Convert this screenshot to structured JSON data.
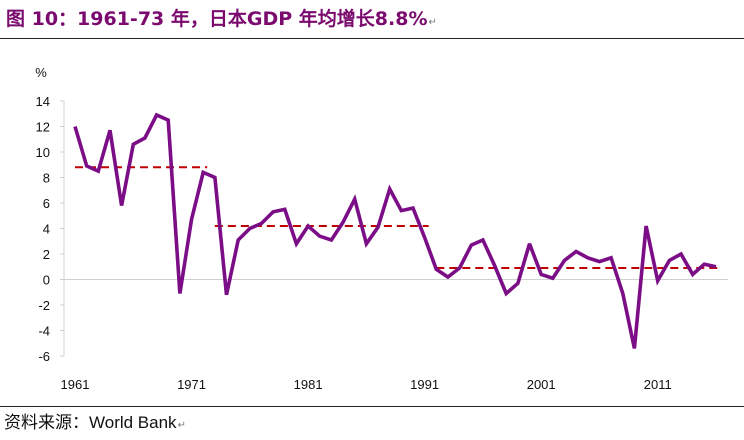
{
  "title": "图 10：1961-73 年，日本GDP 年均增长8.8%",
  "title_mark": "↵",
  "source": {
    "label": "资料来源：",
    "name": "World Bank",
    "mark": "↵"
  },
  "colors": {
    "title": "#7a0a6e",
    "series": "#7b0d86",
    "average": "#c00000",
    "axis": "#d0d0d0"
  },
  "chart_data": {
    "type": "line",
    "ylabel": "%",
    "ylim": [
      -6,
      14
    ],
    "yticks": [
      14,
      12,
      10,
      8,
      6,
      4,
      2,
      0,
      -2,
      -4,
      -6
    ],
    "ytick_labels": [
      "14",
      "12",
      "10",
      "8",
      "6",
      "4",
      "2",
      "0",
      "-2",
      "-4",
      "-6"
    ],
    "xlim": [
      1961,
      2016
    ],
    "xticks": [
      1961,
      1971,
      1981,
      1991,
      2001,
      2011
    ],
    "xtick_labels": [
      "1961",
      "1971",
      "1981",
      "1991",
      "2001",
      "2011"
    ],
    "grid": false,
    "series": [
      {
        "x": [
          1961,
          1962,
          1963,
          1964,
          1965,
          1966,
          1967,
          1968,
          1969,
          1970,
          1971,
          1972,
          1973,
          1974,
          1975,
          1976,
          1977,
          1978,
          1979,
          1980,
          1981,
          1982,
          1983,
          1984,
          1985,
          1986,
          1987,
          1988,
          1989,
          1990,
          1991,
          1992,
          1993,
          1994,
          1995,
          1996,
          1997,
          1998,
          1999,
          2000,
          2001,
          2002,
          2003,
          2004,
          2005,
          2006,
          2007,
          2008,
          2009,
          2010,
          2011,
          2012,
          2013,
          2014,
          2015,
          2016
        ],
        "values": [
          12.0,
          8.9,
          8.5,
          11.7,
          5.8,
          10.6,
          11.1,
          12.9,
          12.5,
          -1.1,
          4.7,
          8.4,
          8.0,
          -1.2,
          3.1,
          4.0,
          4.4,
          5.3,
          5.5,
          2.8,
          4.2,
          3.4,
          3.1,
          4.5,
          6.3,
          2.8,
          4.1,
          7.1,
          5.4,
          5.6,
          3.3,
          0.8,
          0.2,
          0.9,
          2.7,
          3.1,
          1.1,
          -1.1,
          -0.3,
          2.8,
          0.4,
          0.1,
          1.5,
          2.2,
          1.7,
          1.4,
          1.7,
          -1.1,
          -5.4,
          4.2,
          -0.1,
          1.5,
          2.0,
          0.4,
          1.2,
          1.0
        ]
      }
    ],
    "averages": [
      {
        "x_start": 1961,
        "x_end": 1972,
        "value": 8.8
      },
      {
        "x_start": 1973,
        "x_end": 1991,
        "value": 4.2
      },
      {
        "x_start": 1992,
        "x_end": 2016,
        "value": 0.9
      }
    ]
  }
}
